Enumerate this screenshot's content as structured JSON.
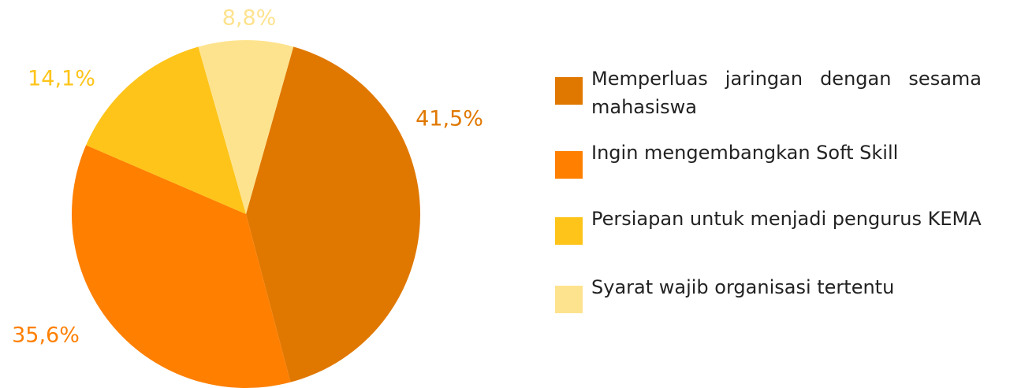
{
  "chart_data": {
    "type": "pie",
    "categories": [
      "Memperluas jaringan dengan sesama mahasiswa",
      "Ingin mengembangkan Soft Skill",
      "Persiapan untuk menjadi pengurus KEMA",
      "Syarat wajib organisasi tertentu"
    ],
    "values": [
      41.5,
      35.6,
      14.1,
      8.8
    ],
    "value_labels": [
      "41,5%",
      "35,6%",
      "14,1%",
      "8,8%"
    ],
    "colors": [
      "#e07800",
      "#ff7f00",
      "#fec419",
      "#fee38f"
    ],
    "legend": "right"
  }
}
